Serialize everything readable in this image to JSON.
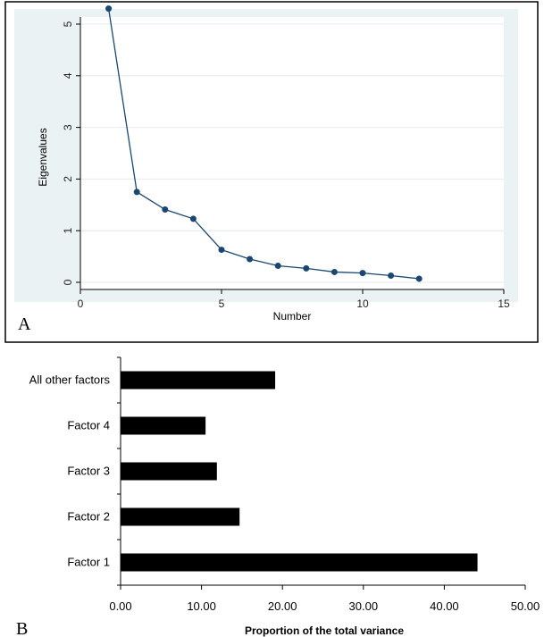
{
  "chart_data": [
    {
      "type": "line",
      "panel_label": "A",
      "xlabel": "Number",
      "ylabel": "Eigenvalues",
      "xlim": [
        0,
        15
      ],
      "ylim": [
        0,
        5.3
      ],
      "xticks": [
        0,
        5,
        10,
        15
      ],
      "yticks": [
        0,
        1,
        2,
        3,
        4,
        5
      ],
      "grid": true,
      "x": [
        1,
        2,
        3,
        4,
        5,
        6,
        7,
        8,
        9,
        10,
        11,
        12
      ],
      "y": [
        5.3,
        1.75,
        1.41,
        1.23,
        0.63,
        0.45,
        0.32,
        0.27,
        0.2,
        0.18,
        0.13,
        0.07
      ],
      "colors": {
        "line": "#1a476f",
        "marker": "#1a476f",
        "plot_bg": "#eaf2f3"
      }
    },
    {
      "type": "bar",
      "orientation": "horizontal",
      "panel_label": "B",
      "xlabel": "Proportion of the total variance",
      "ylabel": "",
      "xlim": [
        0,
        50
      ],
      "xticks": [
        "0.00",
        "10.00",
        "20.00",
        "30.00",
        "40.00",
        "50.00"
      ],
      "categories": [
        "Factor 1",
        "Factor 2",
        "Factor 3",
        "Factor 4",
        "All other factors"
      ],
      "values": [
        44.1,
        14.7,
        11.9,
        10.5,
        19.1
      ],
      "colors": {
        "bar": "#000000"
      }
    }
  ]
}
